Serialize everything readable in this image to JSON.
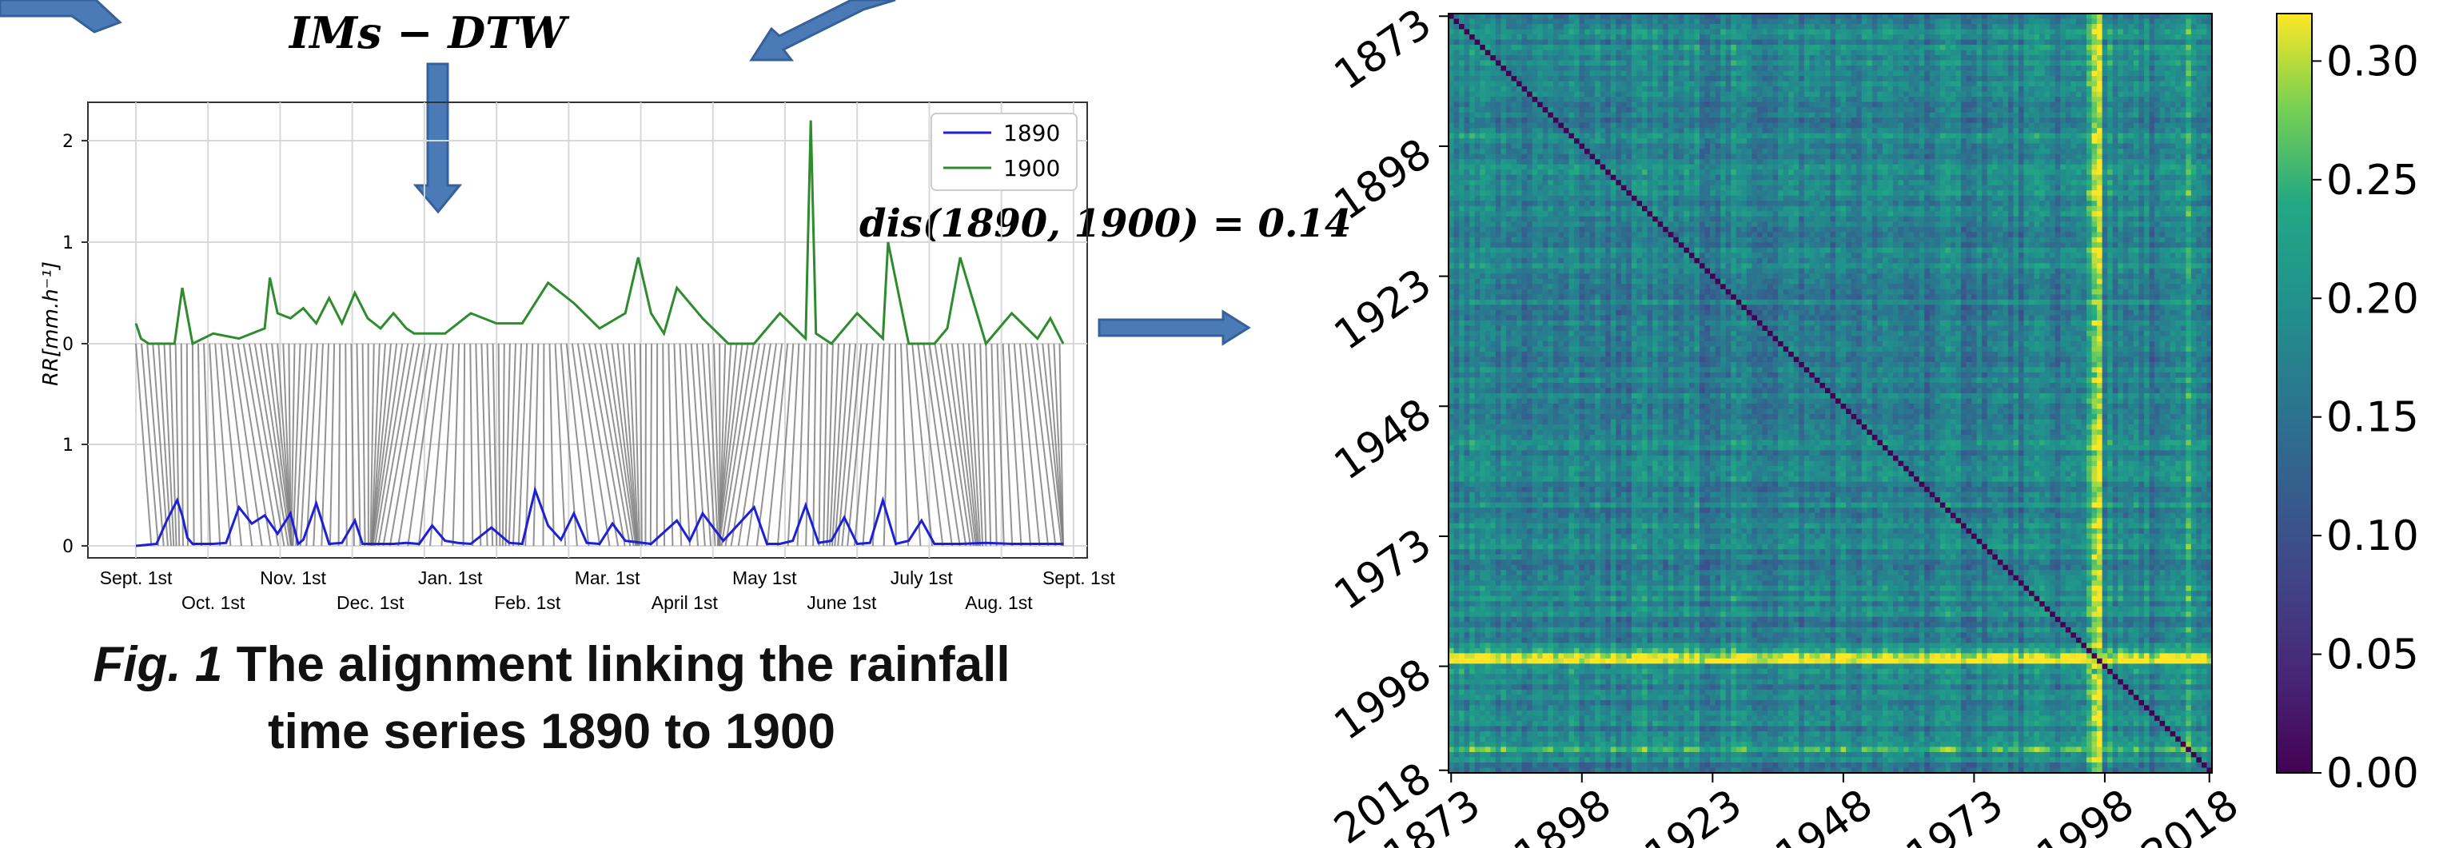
{
  "title_formula": "IMs − DTW",
  "distance_label": "dis(1890, 1900) = 0.14",
  "caption": {
    "prefix": "Fig. 1",
    "text": " The alignment linking the rainfall time series 1890 to 1900"
  },
  "colors": {
    "arrow": "#4a7bb7",
    "series_1890": "#1f1fd6",
    "series_1900": "#2e8b2e",
    "link": "#808080"
  },
  "chart_data": [
    {
      "type": "line",
      "ylabel": "RR[mm.h⁻¹]",
      "legend_position": "top-right",
      "grid": true,
      "upper_panel_yticks": [
        "2",
        "1",
        "0"
      ],
      "lower_panel_yticks": [
        "1",
        "0"
      ],
      "ylim": [
        0,
        2.4
      ],
      "xticks_top_row": [
        "Sept. 1st",
        "Nov. 1st",
        "Jan. 1st",
        "Mar. 1st",
        "May 1st",
        "July 1st",
        "Sept. 1st"
      ],
      "xticks_bottom_row": [
        "Oct. 1st",
        "Dec. 1st",
        "Feb. 1st",
        "April 1st",
        "June 1st",
        "Aug. 1st"
      ],
      "series": [
        {
          "name": "1890",
          "color": "#1f1fd6",
          "x": [
            0,
            8,
            12,
            16,
            18,
            20,
            22,
            30,
            35,
            40,
            45,
            50,
            55,
            60,
            63,
            65,
            70,
            75,
            80,
            85,
            88,
            95,
            100,
            105,
            110,
            115,
            120,
            125,
            130,
            138,
            145,
            150,
            155,
            160,
            165,
            170,
            175,
            180,
            185,
            190,
            200,
            210,
            215,
            220,
            228,
            240,
            245,
            250,
            255,
            260,
            265,
            270,
            275,
            280,
            285,
            290,
            295,
            300,
            305,
            310,
            320,
            330,
            340,
            350,
            360
          ],
          "values": [
            0,
            0.02,
            0.25,
            0.45,
            0.3,
            0.08,
            0.02,
            0.02,
            0.03,
            0.38,
            0.22,
            0.3,
            0.12,
            0.32,
            0.02,
            0.06,
            0.42,
            0.02,
            0.03,
            0.25,
            0.02,
            0.02,
            0.02,
            0.03,
            0.02,
            0.2,
            0.05,
            0.03,
            0.02,
            0.18,
            0.03,
            0.02,
            0.55,
            0.2,
            0.06,
            0.32,
            0.03,
            0.02,
            0.22,
            0.05,
            0.02,
            0.25,
            0.05,
            0.32,
            0.05,
            0.38,
            0.02,
            0.02,
            0.05,
            0.4,
            0.03,
            0.05,
            0.28,
            0.02,
            0.03,
            0.45,
            0.02,
            0.05,
            0.25,
            0.02,
            0.02,
            0.03,
            0.02,
            0.02,
            0.02
          ]
        },
        {
          "name": "1900",
          "color": "#2e8b2e",
          "x": [
            0,
            2,
            5,
            10,
            15,
            18,
            22,
            30,
            40,
            50,
            52,
            55,
            60,
            65,
            70,
            75,
            80,
            85,
            90,
            95,
            100,
            105,
            108,
            115,
            120,
            130,
            140,
            150,
            160,
            170,
            180,
            190,
            195,
            200,
            205,
            210,
            220,
            230,
            240,
            250,
            260,
            262,
            264,
            270,
            280,
            290,
            292,
            300,
            310,
            315,
            320,
            330,
            340,
            350,
            355,
            360
          ],
          "values": [
            0.2,
            0.05,
            0,
            0,
            0,
            0.55,
            0,
            0.1,
            0.05,
            0.15,
            0.65,
            0.3,
            0.25,
            0.35,
            0.2,
            0.45,
            0.2,
            0.5,
            0.25,
            0.15,
            0.3,
            0.15,
            0.1,
            0.1,
            0.1,
            0.3,
            0.2,
            0.2,
            0.6,
            0.4,
            0.15,
            0.3,
            0.85,
            0.3,
            0.1,
            0.55,
            0.25,
            0,
            0,
            0.3,
            0.05,
            2.2,
            0.1,
            0,
            0.3,
            0.05,
            1.0,
            0,
            0,
            0.15,
            0.85,
            0,
            0.3,
            0.05,
            0.25,
            0
          ]
        }
      ]
    },
    {
      "type": "heatmap",
      "xticks": [
        "1873",
        "1898",
        "1923",
        "1948",
        "1973",
        "1998",
        "2018"
      ],
      "yticks": [
        "1873",
        "1898",
        "1923",
        "1948",
        "1973",
        "1998",
        "2018"
      ],
      "years_start": 1873,
      "years_end": 2018,
      "colorbar_ticks": [
        "0.30",
        "0.25",
        "0.20",
        "0.15",
        "0.10",
        "0.05",
        "0.00"
      ],
      "value_range": [
        0,
        0.32
      ],
      "colormap": "viridis",
      "bright_rows_years": [
        1995,
        1996,
        1997,
        2014
      ],
      "bright_column_years": [
        1996,
        1997,
        1999
      ],
      "diagonal_value": 0
    }
  ]
}
